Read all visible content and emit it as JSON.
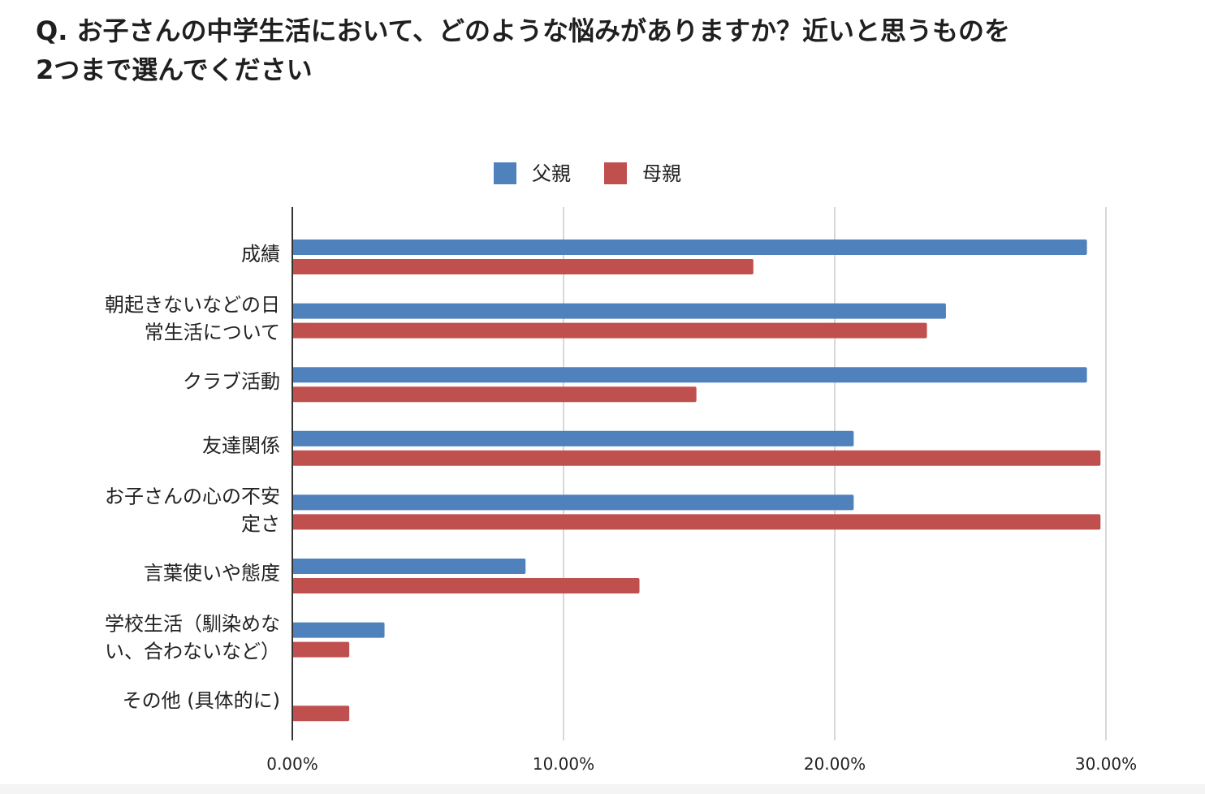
{
  "title": {
    "line1": "Q. お子さんの中学生活において、どのような悩みがありますか？近いと思うものを",
    "line2": "2つまで選んでください"
  },
  "chart_data": {
    "type": "bar",
    "orientation": "horizontal",
    "categories": [
      [
        "成績"
      ],
      [
        "朝起きないなどの日",
        "常生活について"
      ],
      [
        "クラブ活動"
      ],
      [
        "友達関係"
      ],
      [
        "お子さんの心の不安",
        "定さ"
      ],
      [
        "言葉使いや態度"
      ],
      [
        "学校生活（馴染めな",
        "い、合わないなど）"
      ],
      [
        "その他 (具体的に)"
      ]
    ],
    "series": [
      {
        "name": "父親",
        "color": "#4f81bd",
        "values": [
          29.3,
          24.1,
          29.3,
          20.7,
          20.7,
          8.6,
          3.4,
          0.0
        ]
      },
      {
        "name": "母親",
        "color": "#c0504d",
        "values": [
          17.0,
          23.4,
          14.9,
          29.8,
          29.8,
          12.8,
          2.1,
          2.1
        ]
      }
    ],
    "xlim": [
      0,
      30
    ],
    "xticks": [
      0,
      10,
      20,
      30
    ],
    "xtick_labels": [
      "0.00%",
      "10.00%",
      "20.00%",
      "30.00%"
    ],
    "grid": true,
    "legend": "top-center",
    "colors": {
      "grid": "#cccccc",
      "axis": "#333333",
      "label": "#222222"
    }
  }
}
